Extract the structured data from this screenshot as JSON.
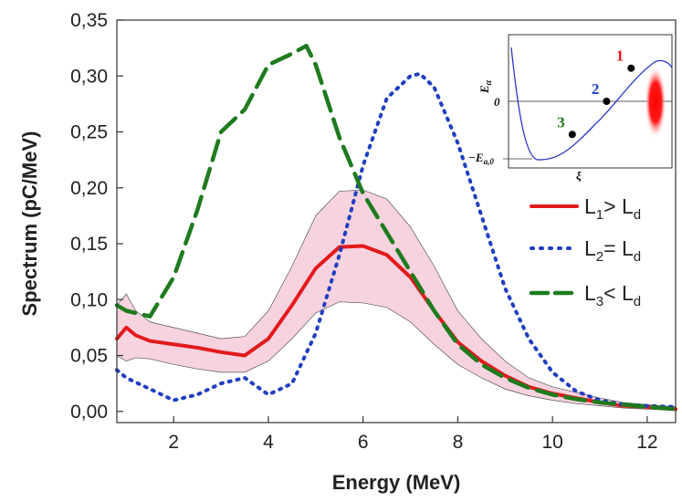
{
  "chart_data": {
    "type": "line",
    "title": "",
    "xlabel": "Energy (MeV)",
    "ylabel": "Spectrum (pC/MeV)",
    "xlim": [
      0.8,
      12.6
    ],
    "ylim": [
      -0.01,
      0.35
    ],
    "xticks": [
      2,
      4,
      6,
      8,
      10,
      12
    ],
    "xtick_labels": [
      "2",
      "4",
      "6",
      "8",
      "10",
      "12"
    ],
    "yticks": [
      0,
      0.05,
      0.1,
      0.15,
      0.2,
      0.25,
      0.3,
      0.35
    ],
    "ytick_labels": [
      "0,00",
      "0,05",
      "0,10",
      "0,15",
      "0,20",
      "0,25",
      "0,30",
      "0,35"
    ],
    "grid": false,
    "legend_position": "right",
    "band": {
      "name": "L1 uncertainty",
      "color": "#f7d3df",
      "x": [
        0.8,
        1.0,
        1.2,
        1.5,
        2.0,
        2.5,
        3.0,
        3.5,
        4.0,
        4.5,
        5.0,
        5.5,
        6.0,
        6.5,
        7.0,
        7.5,
        8.0,
        8.5,
        9.0,
        9.5,
        10.0,
        10.5,
        11.0,
        11.5,
        12.0,
        12.6
      ],
      "upper": [
        0.095,
        0.105,
        0.09,
        0.08,
        0.075,
        0.07,
        0.065,
        0.067,
        0.09,
        0.13,
        0.175,
        0.197,
        0.198,
        0.19,
        0.165,
        0.13,
        0.09,
        0.065,
        0.045,
        0.03,
        0.022,
        0.017,
        0.012,
        0.008,
        0.006,
        0.004
      ],
      "lower": [
        0.05,
        0.045,
        0.048,
        0.047,
        0.042,
        0.038,
        0.035,
        0.035,
        0.045,
        0.065,
        0.088,
        0.098,
        0.097,
        0.093,
        0.08,
        0.06,
        0.042,
        0.03,
        0.02,
        0.014,
        0.01,
        0.007,
        0.005,
        0.003,
        0.002,
        0.001
      ]
    },
    "series": [
      {
        "name": "L1 > Ld",
        "legend_main": "L",
        "legend_sub": "1",
        "legend_rest": "> L",
        "legend_sub2": "d",
        "color": "#e31a1c",
        "dash": "solid",
        "x": [
          0.8,
          1.0,
          1.2,
          1.5,
          2.0,
          2.5,
          3.0,
          3.5,
          4.0,
          4.5,
          5.0,
          5.5,
          6.0,
          6.5,
          7.0,
          7.5,
          8.0,
          8.5,
          9.0,
          9.5,
          10.0,
          10.5,
          11.0,
          11.5,
          12.0,
          12.6
        ],
        "y": [
          0.065,
          0.075,
          0.068,
          0.063,
          0.06,
          0.057,
          0.053,
          0.05,
          0.065,
          0.095,
          0.128,
          0.147,
          0.148,
          0.14,
          0.12,
          0.09,
          0.062,
          0.045,
          0.032,
          0.022,
          0.016,
          0.012,
          0.008,
          0.005,
          0.004,
          0.002
        ]
      },
      {
        "name": "L2 = Ld",
        "legend_main": "L",
        "legend_sub": "2",
        "legend_rest": "= L",
        "legend_sub2": "d",
        "color": "#1f3fbf",
        "dash": "dotted",
        "x": [
          0.8,
          1.0,
          1.5,
          2.0,
          2.5,
          3.0,
          3.5,
          4.0,
          4.5,
          5.0,
          5.5,
          6.0,
          6.5,
          7.0,
          7.2,
          7.5,
          8.0,
          8.5,
          9.0,
          9.5,
          10.0,
          10.5,
          11.0,
          11.5,
          12.0,
          12.6
        ],
        "y": [
          0.037,
          0.03,
          0.02,
          0.01,
          0.015,
          0.025,
          0.03,
          0.015,
          0.025,
          0.07,
          0.14,
          0.22,
          0.28,
          0.3,
          0.302,
          0.29,
          0.24,
          0.175,
          0.11,
          0.065,
          0.035,
          0.018,
          0.01,
          0.006,
          0.005,
          0.004
        ]
      },
      {
        "name": "L3 < Ld",
        "legend_main": "L",
        "legend_sub": "3",
        "legend_rest": "< L",
        "legend_sub2": "d",
        "color": "#1e7b1e",
        "dash": "dashed",
        "x": [
          0.8,
          1.0,
          1.5,
          2.0,
          2.5,
          3.0,
          3.5,
          4.0,
          4.5,
          4.8,
          5.0,
          5.5,
          6.0,
          6.5,
          7.0,
          7.5,
          8.0,
          8.5,
          9.0,
          9.5,
          10.0,
          10.5,
          11.0,
          11.5,
          12.0,
          12.6
        ],
        "y": [
          0.095,
          0.09,
          0.085,
          0.12,
          0.18,
          0.25,
          0.27,
          0.31,
          0.32,
          0.327,
          0.31,
          0.245,
          0.195,
          0.16,
          0.125,
          0.09,
          0.06,
          0.042,
          0.03,
          0.021,
          0.015,
          0.011,
          0.008,
          0.006,
          0.004,
          0.002
        ]
      }
    ],
    "inset": {
      "y_axis_label": "E",
      "y_axis_sub": "α",
      "x_axis_label": "ξ",
      "zero_label": "0",
      "min_label": "−E",
      "min_sub": "a,0",
      "points": [
        {
          "label": "1",
          "color": "#e31a1c",
          "xi": 0.75,
          "e": 0.55
        },
        {
          "label": "2",
          "color": "#1f3fbf",
          "xi": 0.6,
          "e": 0.0
        },
        {
          "label": "3",
          "color": "#1e7b1e",
          "xi": 0.39,
          "e": -0.55
        }
      ]
    }
  }
}
